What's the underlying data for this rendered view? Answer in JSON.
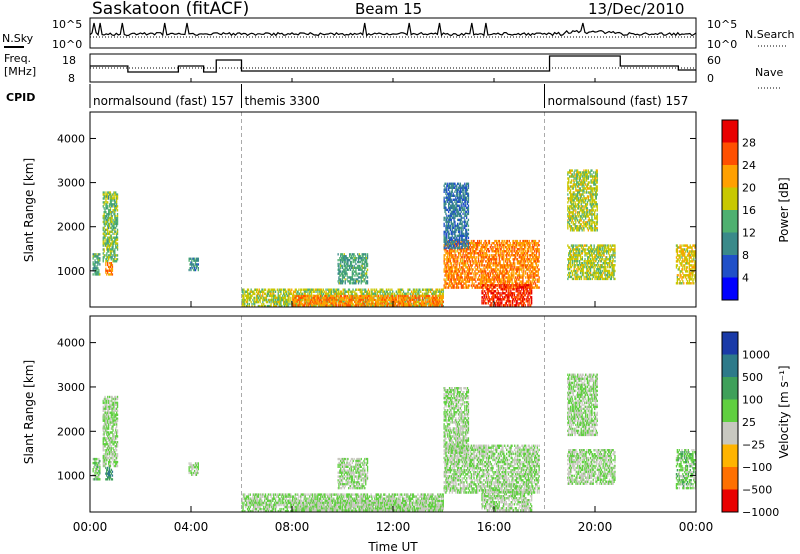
{
  "header": {
    "title": "Saskatoon (fitACF)",
    "beam": "Beam 15",
    "date": "13/Dec/2010"
  },
  "noise_panel": {
    "left_label": "N.Sky",
    "right_label": "N.Search",
    "ticks": [
      "10^5",
      "10^0"
    ]
  },
  "freq_panel": {
    "left_label_1": "Freq.",
    "left_label_2": "[MHz]",
    "left_ticks": [
      "18",
      "8"
    ],
    "right_label": "Nave",
    "right_ticks": [
      "60",
      "0"
    ]
  },
  "cpid": {
    "label": "CPID",
    "segments": [
      {
        "name": "normalsound (fast) 157",
        "start_hr": 0,
        "end_hr": 6
      },
      {
        "name": "themis 3300",
        "start_hr": 6,
        "end_hr": 18
      },
      {
        "name": "normalsound (fast) 157",
        "start_hr": 18,
        "end_hr": 24
      }
    ]
  },
  "power_panel": {
    "ylabel": "Slant Range [km]",
    "yticks": [
      "1000",
      "2000",
      "3000",
      "4000"
    ],
    "colorbar_label": "Power [dB]",
    "colorbar_ticks": [
      "4",
      "8",
      "12",
      "16",
      "20",
      "24",
      "28"
    ],
    "colors": [
      "#0000ff",
      "#2050c8",
      "#3a8a8a",
      "#4fb070",
      "#c8c800",
      "#ffa000",
      "#ff5000",
      "#e80000"
    ]
  },
  "velocity_panel": {
    "ylabel": "Slant Range [km]",
    "yticks": [
      "1000",
      "2000",
      "3000",
      "4000"
    ],
    "colorbar_label": "Velocity [m s⁻¹]",
    "colorbar_ticks": [
      "1000",
      "500",
      "100",
      "25",
      "−25",
      "−100",
      "−500",
      "−1000"
    ],
    "colors": [
      "#1a3aa8",
      "#2e7a8a",
      "#3fa05a",
      "#60d040",
      "#c8c8c0",
      "#ffb400",
      "#ff7000",
      "#e80000"
    ]
  },
  "x_axis": {
    "label": "Time UT",
    "ticks": [
      "00:00",
      "04:00",
      "08:00",
      "12:00",
      "16:00",
      "20:00",
      "00:00"
    ]
  },
  "chart_data": {
    "type": "heatmap",
    "title": "Saskatoon (fitACF)",
    "xlabel": "Time UT",
    "ylabel": "Slant Range [km]",
    "xlim_hours": [
      0,
      24
    ],
    "ylim_km": [
      180,
      4600
    ],
    "power_db_range": [
      0,
      30
    ],
    "velocity_range": [
      -1000,
      1000
    ],
    "echo_regions": [
      {
        "t0": 0.1,
        "t1": 0.4,
        "r0": 900,
        "r1": 1400,
        "power": 12,
        "velocity": 100
      },
      {
        "t0": 0.5,
        "t1": 1.1,
        "r0": 1200,
        "r1": 2800,
        "power": 14,
        "velocity": 0
      },
      {
        "t0": 0.6,
        "t1": 0.9,
        "r0": 900,
        "r1": 1200,
        "power": 22,
        "velocity": 500
      },
      {
        "t0": 3.9,
        "t1": 4.3,
        "r0": 1000,
        "r1": 1300,
        "power": 10,
        "velocity": 0
      },
      {
        "t0": 6.0,
        "t1": 14.0,
        "r0": 180,
        "r1": 600,
        "power": 16,
        "velocity": 25
      },
      {
        "t0": 8.0,
        "t1": 14.0,
        "r0": 200,
        "r1": 450,
        "power": 22,
        "velocity": -25
      },
      {
        "t0": 9.8,
        "t1": 11.0,
        "r0": 700,
        "r1": 1400,
        "power": 12,
        "velocity": 0
      },
      {
        "t0": 14.0,
        "t1": 17.8,
        "r0": 600,
        "r1": 1700,
        "power": 22,
        "velocity": 0
      },
      {
        "t0": 15.5,
        "t1": 17.5,
        "r0": 200,
        "r1": 700,
        "power": 26,
        "velocity": -25
      },
      {
        "t0": 14.0,
        "t1": 15.0,
        "r0": 1500,
        "r1": 3000,
        "power": 8,
        "velocity": 0
      },
      {
        "t0": 18.9,
        "t1": 20.8,
        "r0": 800,
        "r1": 1600,
        "power": 16,
        "velocity": 0
      },
      {
        "t0": 18.9,
        "t1": 20.1,
        "r0": 1900,
        "r1": 3300,
        "power": 16,
        "velocity": 0
      },
      {
        "t0": 23.2,
        "t1": 24.0,
        "r0": 700,
        "r1": 1600,
        "power": 18,
        "velocity": 100
      }
    ]
  }
}
